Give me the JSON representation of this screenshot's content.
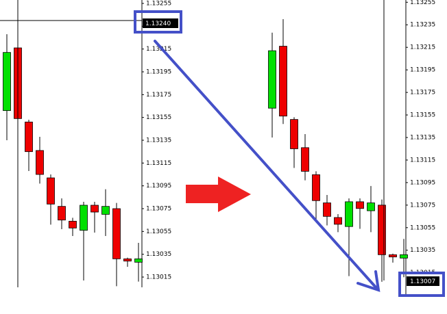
{
  "chart_data": [
    {
      "type": "candlestick",
      "up_color": "#00e000",
      "down_color": "#ee0000",
      "open": [
        1.13161,
        1.13216,
        1.13151,
        1.13126,
        1.13102,
        1.13077,
        1.13064,
        1.13056,
        1.13078,
        1.1307,
        1.13075,
        1.13031,
        1.13028
      ],
      "high": [
        1.13228,
        1.1324,
        1.13153,
        1.13138,
        1.13105,
        1.13084,
        1.13067,
        1.13081,
        1.13081,
        1.13092,
        1.1308,
        1.13032,
        1.13045
      ],
      "low": [
        1.13135,
        1.13147,
        1.13108,
        1.13097,
        1.13061,
        1.13057,
        1.13051,
        1.13012,
        1.13054,
        1.13051,
        1.13007,
        1.13024,
        1.13011
      ],
      "close": [
        1.13212,
        1.13154,
        1.13125,
        1.13105,
        1.13079,
        1.13065,
        1.13058,
        1.13078,
        1.13072,
        1.13077,
        1.13031,
        1.13029,
        1.13031
      ],
      "ylim": [
        1.13006,
        1.13258
      ],
      "yticks": [
        1.13015,
        1.13035,
        1.13055,
        1.13075,
        1.13095,
        1.13115,
        1.13135,
        1.13155,
        1.13175,
        1.13195,
        1.13215,
        1.13235,
        1.13255
      ],
      "annotation": "1.13240"
    },
    {
      "type": "candlestick",
      "up_color": "#00e000",
      "down_color": "#ee0000",
      "open": [
        1.13161,
        1.13216,
        1.13151,
        1.13126,
        1.13102,
        1.13077,
        1.13064,
        1.13056,
        1.13078,
        1.1307,
        1.13075,
        1.13031,
        1.13028
      ],
      "high": [
        1.13228,
        1.1324,
        1.13153,
        1.13138,
        1.13105,
        1.13084,
        1.13067,
        1.13081,
        1.13081,
        1.13092,
        1.1308,
        1.13032,
        1.13045
      ],
      "low": [
        1.13135,
        1.13147,
        1.13108,
        1.13097,
        1.13061,
        1.13057,
        1.13051,
        1.13012,
        1.13054,
        1.13051,
        1.13007,
        1.13024,
        1.13011
      ],
      "close": [
        1.13212,
        1.13154,
        1.13125,
        1.13105,
        1.13079,
        1.13065,
        1.13058,
        1.13078,
        1.13072,
        1.13077,
        1.13031,
        1.13029,
        1.13031
      ],
      "ylim": [
        1.12996,
        1.13257
      ],
      "yticks": [
        1.13015,
        1.13035,
        1.13055,
        1.13075,
        1.13095,
        1.13115,
        1.13135,
        1.13155,
        1.13175,
        1.13195,
        1.13215,
        1.13235,
        1.13255
      ],
      "annotation": "1.13007"
    }
  ]
}
